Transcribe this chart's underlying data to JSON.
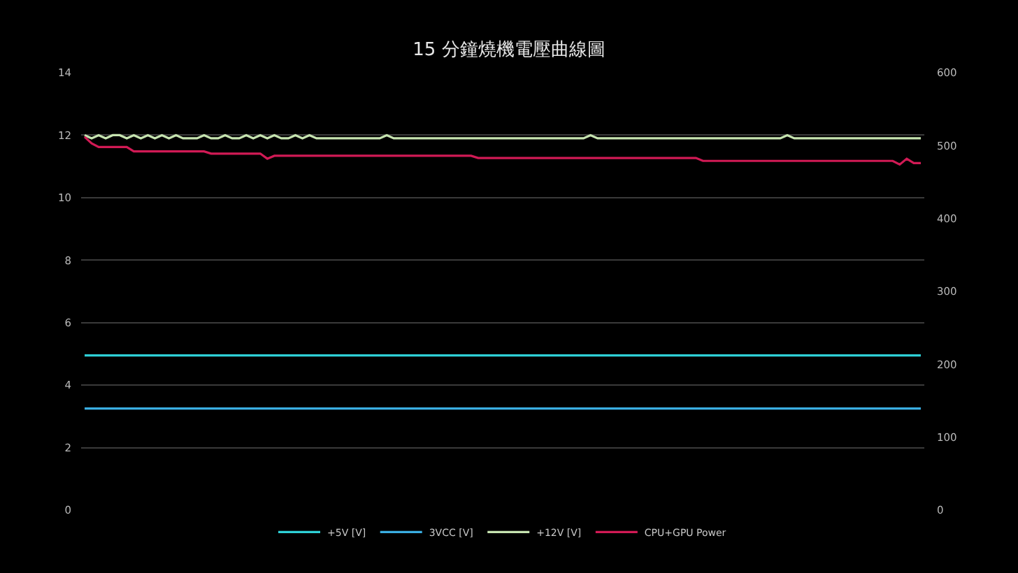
{
  "chart_data": {
    "type": "line",
    "title": "15 分鐘燒機電壓曲線圖",
    "categories": [
      null,
      null,
      null,
      null,
      null,
      null,
      null,
      null,
      null,
      null,
      null,
      null,
      null,
      null,
      null,
      null,
      null,
      null,
      null,
      null,
      null,
      null,
      null,
      null,
      null,
      null,
      null,
      null,
      null,
      null,
      null,
      null,
      null,
      null,
      null,
      null,
      null,
      null,
      null,
      null,
      null,
      null,
      null,
      null,
      null,
      null,
      null,
      null,
      null,
      null,
      null,
      null,
      null,
      null,
      null,
      null,
      null,
      null,
      null,
      null,
      null,
      null,
      null,
      null,
      null,
      null,
      null,
      null,
      null,
      null,
      null,
      null,
      null,
      null,
      null,
      null,
      null,
      null,
      null,
      null,
      null,
      null,
      null,
      null,
      null,
      null,
      null,
      null,
      null,
      null,
      null,
      null,
      null,
      null,
      null,
      null,
      null,
      null,
      null,
      null,
      null,
      null,
      null,
      null,
      null,
      null,
      null,
      null,
      null,
      null,
      null,
      null,
      null,
      null,
      null,
      null,
      null,
      null,
      null,
      null
    ],
    "series": [
      {
        "name": "+5V [V]",
        "color": "#2ed0d6",
        "values": [
          4.95,
          4.95,
          4.95,
          4.95,
          4.95,
          4.95,
          4.95,
          4.95,
          4.95,
          4.95,
          4.95,
          4.95,
          4.95,
          4.95,
          4.95,
          4.95,
          4.95,
          4.95,
          4.95,
          4.95,
          4.95,
          4.95,
          4.95,
          4.95,
          4.95,
          4.95,
          4.95,
          4.95,
          4.95,
          4.95,
          4.95,
          4.95,
          4.95,
          4.95,
          4.95,
          4.95,
          4.95,
          4.95,
          4.95,
          4.95,
          4.95,
          4.95,
          4.95,
          4.95,
          4.95,
          4.95,
          4.95,
          4.95,
          4.95,
          4.95,
          4.95,
          4.95,
          4.95,
          4.95,
          4.95,
          4.95,
          4.95,
          4.95,
          4.95,
          4.95,
          4.95,
          4.95,
          4.95,
          4.95,
          4.95,
          4.95,
          4.95,
          4.95,
          4.95,
          4.95,
          4.95,
          4.95,
          4.95,
          4.95,
          4.95,
          4.95,
          4.95,
          4.95,
          4.95,
          4.95,
          4.95,
          4.95,
          4.95,
          4.95,
          4.95,
          4.95,
          4.95,
          4.95,
          4.95,
          4.95,
          4.95,
          4.95,
          4.95,
          4.95,
          4.95,
          4.95,
          4.95,
          4.95,
          4.95,
          4.95,
          4.95,
          4.95,
          4.95,
          4.95,
          4.95,
          4.95,
          4.95,
          4.95,
          4.95,
          4.95,
          4.95,
          4.95,
          4.95,
          4.95,
          4.95,
          4.95,
          4.95,
          4.95,
          4.95,
          4.95
        ]
      },
      {
        "name": "3VCC [V]",
        "color": "#3aaee2",
        "values": [
          3.25,
          3.25,
          3.25,
          3.25,
          3.25,
          3.25,
          3.25,
          3.25,
          3.25,
          3.25,
          3.25,
          3.25,
          3.25,
          3.25,
          3.25,
          3.25,
          3.25,
          3.25,
          3.25,
          3.25,
          3.25,
          3.25,
          3.25,
          3.25,
          3.25,
          3.25,
          3.25,
          3.25,
          3.25,
          3.25,
          3.25,
          3.25,
          3.25,
          3.25,
          3.25,
          3.25,
          3.25,
          3.25,
          3.25,
          3.25,
          3.25,
          3.25,
          3.25,
          3.25,
          3.25,
          3.25,
          3.25,
          3.25,
          3.25,
          3.25,
          3.25,
          3.25,
          3.25,
          3.25,
          3.25,
          3.25,
          3.25,
          3.25,
          3.25,
          3.25,
          3.25,
          3.25,
          3.25,
          3.25,
          3.25,
          3.25,
          3.25,
          3.25,
          3.25,
          3.25,
          3.25,
          3.25,
          3.25,
          3.25,
          3.25,
          3.25,
          3.25,
          3.25,
          3.25,
          3.25,
          3.25,
          3.25,
          3.25,
          3.25,
          3.25,
          3.25,
          3.25,
          3.25,
          3.25,
          3.25,
          3.25,
          3.25,
          3.25,
          3.25,
          3.25,
          3.25,
          3.25,
          3.25,
          3.25,
          3.25,
          3.25,
          3.25,
          3.25,
          3.25,
          3.25,
          3.25,
          3.25,
          3.25,
          3.25,
          3.25,
          3.25,
          3.25,
          3.25,
          3.25,
          3.25,
          3.25,
          3.25,
          3.25,
          3.25,
          3.25
        ]
      },
      {
        "name": "+12V [V]",
        "color": "#c6e4b0",
        "values": [
          12,
          11.9,
          12,
          11.9,
          12,
          12,
          11.9,
          12,
          11.9,
          12,
          11.9,
          12,
          11.9,
          12,
          11.9,
          11.9,
          11.9,
          12,
          11.9,
          11.9,
          12,
          11.9,
          11.9,
          12,
          11.9,
          12,
          11.9,
          12,
          11.9,
          11.9,
          12,
          11.9,
          12,
          11.9,
          11.9,
          11.9,
          11.9,
          11.9,
          11.9,
          11.9,
          11.9,
          11.9,
          11.9,
          12,
          11.9,
          11.9,
          11.9,
          11.9,
          11.9,
          11.9,
          11.9,
          11.9,
          11.9,
          11.9,
          11.9,
          11.9,
          11.9,
          11.9,
          11.9,
          11.9,
          11.9,
          11.9,
          11.9,
          11.9,
          11.9,
          11.9,
          11.9,
          11.9,
          11.9,
          11.9,
          11.9,
          11.9,
          12,
          11.9,
          11.9,
          11.9,
          11.9,
          11.9,
          11.9,
          11.9,
          11.9,
          11.9,
          11.9,
          11.9,
          11.9,
          11.9,
          11.9,
          11.9,
          11.9,
          11.9,
          11.9,
          11.9,
          11.9,
          11.9,
          11.9,
          11.9,
          11.9,
          11.9,
          11.9,
          11.9,
          12,
          11.9,
          11.9,
          11.9,
          11.9,
          11.9,
          11.9,
          11.9,
          11.9,
          11.9,
          11.9,
          11.9,
          11.9,
          11.9,
          11.9,
          11.9,
          11.9,
          11.9,
          11.9,
          11.9
        ]
      },
      {
        "name": "CPU+GPU Power",
        "color": "#d11a55",
        "axis": "y2",
        "values": [
          512,
          503,
          498,
          498,
          498,
          498,
          498,
          492,
          492,
          492,
          492,
          492,
          492,
          492,
          492,
          492,
          492,
          492,
          489,
          489,
          489,
          489,
          489,
          489,
          489,
          489,
          482,
          486,
          486,
          486,
          486,
          486,
          486,
          486,
          486,
          486,
          486,
          486,
          486,
          486,
          486,
          486,
          486,
          486,
          486,
          486,
          486,
          486,
          486,
          486,
          486,
          486,
          486,
          486,
          486,
          486,
          483,
          483,
          483,
          483,
          483,
          483,
          483,
          483,
          483,
          483,
          483,
          483,
          483,
          483,
          483,
          483,
          483,
          483,
          483,
          483,
          483,
          483,
          483,
          483,
          483,
          483,
          483,
          483,
          483,
          483,
          483,
          483,
          479,
          479,
          479,
          479,
          479,
          479,
          479,
          479,
          479,
          479,
          479,
          479,
          479,
          479,
          479,
          479,
          479,
          479,
          479,
          479,
          479,
          479,
          479,
          479,
          479,
          479,
          479,
          479,
          474,
          482,
          476,
          476
        ]
      }
    ],
    "ylim": [
      0,
      14
    ],
    "yticks": [
      0,
      2,
      4,
      6,
      8,
      10,
      12,
      14
    ],
    "y2lim": [
      0,
      600
    ],
    "y2ticks": [
      0,
      100,
      200,
      300,
      400,
      500,
      600
    ],
    "tick_labels": "y",
    "grid": "y",
    "legend": "bottom",
    "marker": "none",
    "line_style": "solid"
  }
}
